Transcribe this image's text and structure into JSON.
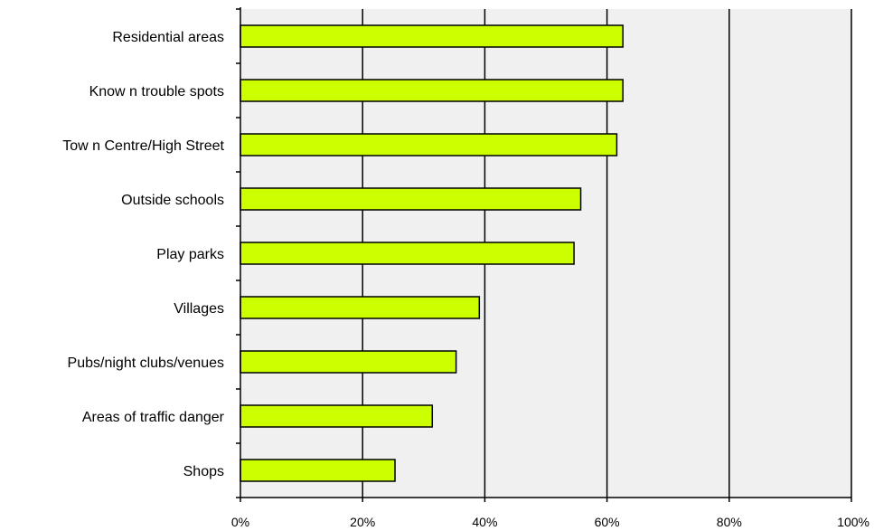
{
  "chart_data": {
    "type": "bar",
    "orientation": "horizontal",
    "categories": [
      "Residential areas",
      "Know n trouble spots",
      "Tow n Centre/High Street",
      "Outside schools",
      "Play parks",
      "Villages",
      "Pubs/night clubs/venues",
      "Areas of traffic danger",
      "Shops"
    ],
    "values": [
      62.6,
      62.6,
      61.6,
      55.7,
      54.6,
      39.1,
      35.3,
      31.4,
      25.3
    ],
    "value_unit": "%",
    "xlim": [
      0,
      100
    ],
    "xticks": [
      0,
      20,
      40,
      60,
      80,
      100
    ],
    "xtick_labels": [
      "0%",
      "20%",
      "40%",
      "60%",
      "80%",
      "100%"
    ],
    "grid": "vertical",
    "legend": "none",
    "colors": {
      "bar_fill": "#ccff00",
      "bar_stroke": "#000000",
      "plot_background": "#f0f0f0",
      "gridline": "#000000"
    }
  }
}
